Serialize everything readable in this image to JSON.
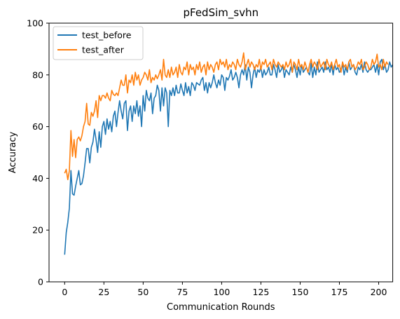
{
  "chart_data": {
    "type": "line",
    "title": "pFedSim_svhn",
    "xlabel": "Communication Rounds",
    "ylabel": "Accuracy",
    "xlim": [
      -9.95,
      208.95
    ],
    "ylim": [
      0,
      100
    ],
    "xticks": [
      0,
      25,
      50,
      75,
      100,
      125,
      150,
      175,
      200
    ],
    "yticks": [
      0,
      20,
      40,
      60,
      80,
      100
    ],
    "grid": false,
    "legend_position": "upper-left",
    "series": [
      {
        "name": "test_before",
        "color": "#1f77b4",
        "x_start": 0,
        "x_step": 1,
        "values": [
          10.5,
          19,
          23,
          28.5,
          43,
          34,
          33.5,
          37,
          40,
          43,
          37.5,
          38,
          41,
          46,
          51.5,
          51.5,
          46,
          52,
          54,
          59,
          55,
          50,
          58,
          52,
          60,
          62,
          57,
          63,
          59,
          62,
          58,
          64,
          66,
          60,
          65.5,
          70,
          66,
          63,
          69,
          70,
          58.5,
          66,
          68,
          62,
          68,
          65,
          70,
          64,
          68,
          60,
          72,
          66,
          74,
          71,
          70,
          73,
          65,
          71,
          72,
          76,
          74,
          66,
          75,
          68,
          75,
          73,
          60,
          74,
          72,
          75,
          72,
          76,
          73,
          73,
          76.5,
          74,
          72,
          77,
          73,
          75.5,
          72,
          77,
          76,
          74,
          77,
          76.5,
          76,
          78,
          79,
          74,
          77,
          73,
          77,
          75,
          77,
          80,
          77,
          75,
          78,
          76,
          80,
          79,
          74,
          79,
          78,
          79.5,
          82,
          78,
          79,
          81,
          79,
          75,
          80,
          82,
          80,
          84,
          78,
          83,
          81,
          75,
          80,
          83,
          79,
          82,
          81,
          83,
          79,
          82,
          80,
          81,
          83,
          80,
          80,
          84,
          82,
          79,
          84,
          81,
          82,
          83.5,
          79,
          82,
          81,
          80,
          83,
          81,
          84,
          82,
          79,
          83,
          80,
          84,
          81,
          82,
          83,
          81,
          80,
          84.5,
          79,
          83,
          80,
          85,
          81,
          82,
          83,
          81,
          85,
          82,
          83,
          81,
          84,
          80,
          84,
          82,
          83,
          81,
          82,
          84,
          80,
          83,
          81,
          85,
          82,
          83,
          84,
          81,
          80,
          83,
          82,
          84,
          81,
          85,
          82,
          81,
          82,
          82,
          83,
          84,
          81,
          84,
          80,
          85,
          86,
          82,
          84,
          81,
          82,
          85,
          83,
          84
        ]
      },
      {
        "name": "test_after",
        "color": "#ff7f0e",
        "x_start": 0,
        "x_step": 1,
        "values": [
          42,
          43.5,
          39.5,
          43,
          58.5,
          48.5,
          55,
          48,
          55,
          56,
          54.5,
          56.5,
          60,
          62,
          69,
          61,
          60.5,
          65.5,
          64,
          66,
          70,
          63.5,
          72,
          70,
          72,
          72,
          71,
          73,
          71,
          70,
          74,
          72.5,
          72,
          73,
          72,
          75,
          78,
          76,
          76,
          80,
          73,
          78,
          77,
          80,
          76,
          81,
          78,
          80,
          76,
          78,
          79,
          81,
          80,
          78,
          82,
          77,
          79,
          78,
          80,
          78.5,
          80,
          82,
          78,
          86,
          80,
          79,
          82,
          79,
          83,
          80,
          81,
          83,
          79,
          84,
          81,
          80,
          83,
          82,
          85,
          80,
          84,
          82,
          83,
          80,
          84,
          82,
          85,
          81,
          83,
          84,
          80,
          85,
          82,
          84,
          83,
          81,
          84,
          85,
          82,
          86,
          84,
          85,
          83,
          86,
          82,
          84,
          83,
          85,
          84,
          82,
          86,
          84,
          83,
          85,
          88.5,
          82,
          84,
          86,
          83,
          85,
          84,
          82,
          84,
          83,
          86,
          82,
          85,
          84,
          86,
          83,
          84,
          85,
          82,
          86,
          84,
          83,
          85,
          84,
          83,
          84,
          82,
          85,
          83,
          84,
          86,
          81,
          85,
          84,
          82,
          86,
          83,
          84,
          82,
          85,
          83,
          81,
          84,
          86,
          83,
          85,
          84,
          82,
          86,
          83,
          84,
          85,
          82,
          86,
          84,
          83,
          85,
          82,
          84,
          86,
          83,
          84,
          81,
          85,
          83,
          84,
          82,
          85,
          86,
          83,
          84,
          82,
          83,
          85,
          84,
          86,
          82,
          83,
          85,
          84,
          82,
          83,
          86,
          84,
          85,
          88,
          83,
          84,
          82,
          86,
          83,
          85,
          84
        ]
      }
    ]
  }
}
